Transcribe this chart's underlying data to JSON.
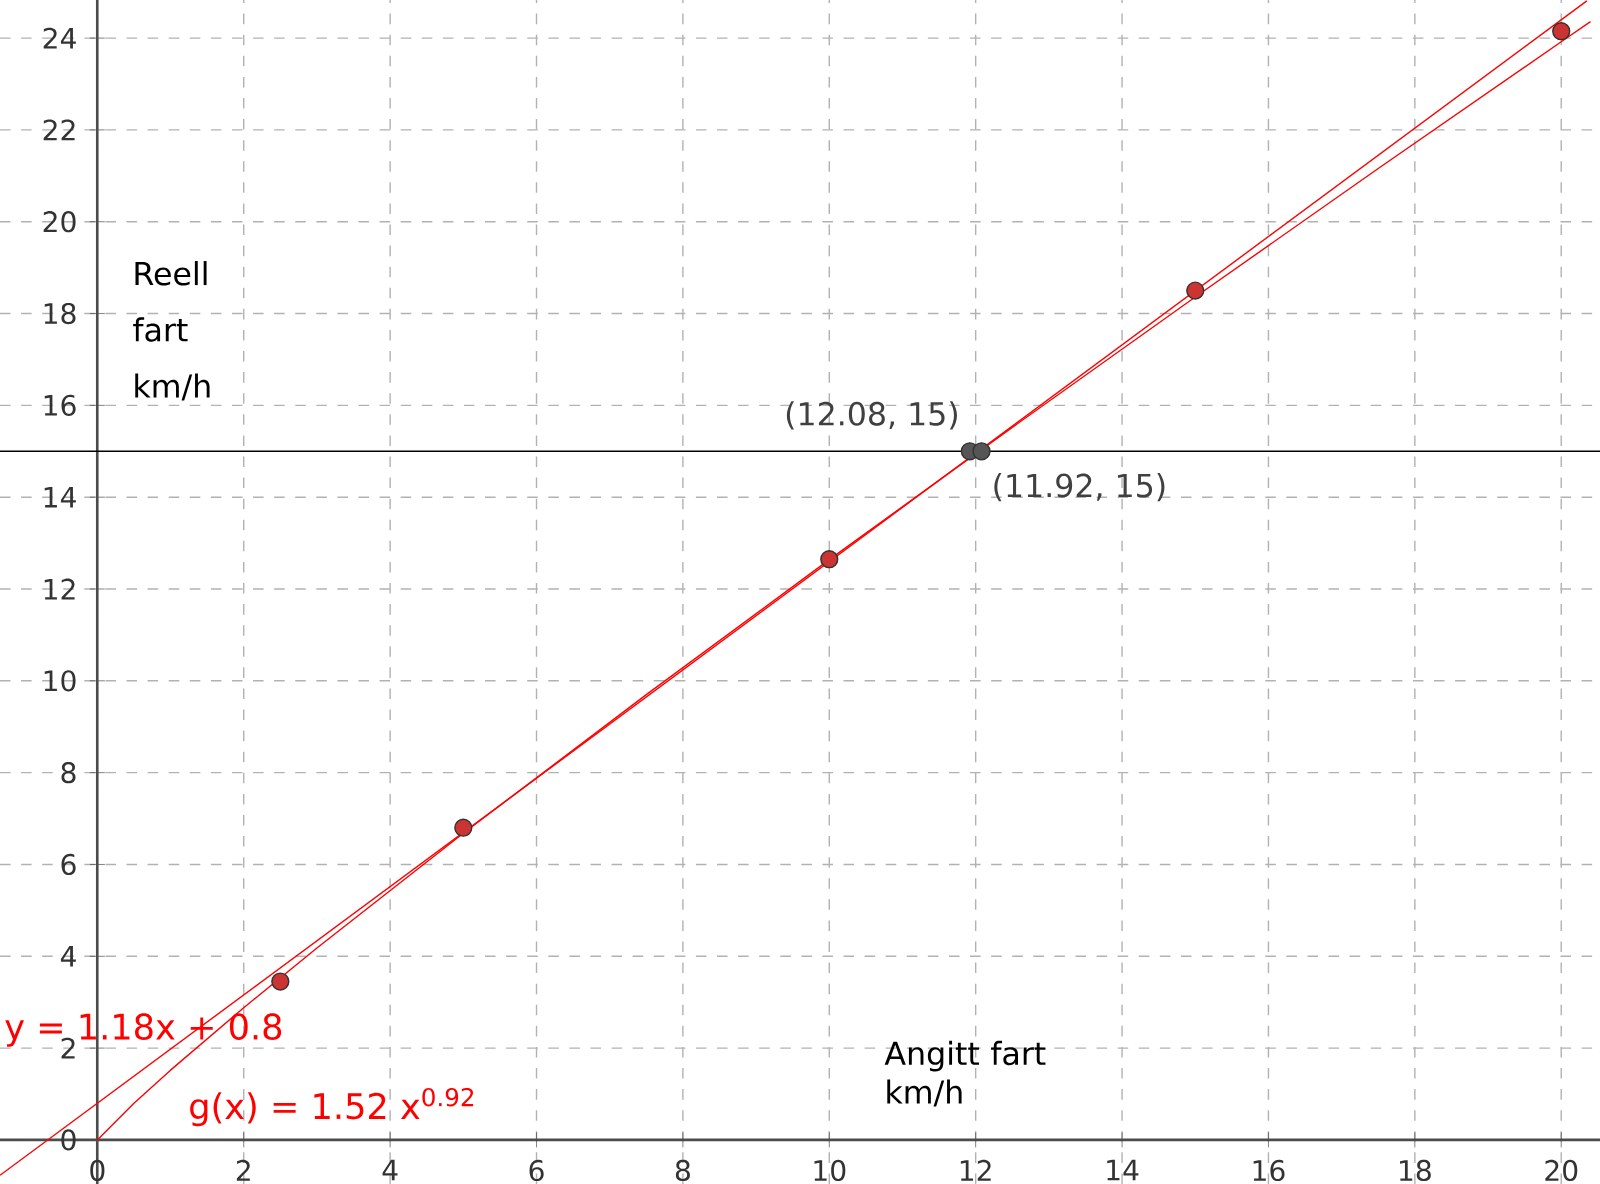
{
  "chart_data": {
    "type": "scatter",
    "xlabel": "Angitt fart km/h",
    "ylabel": "Reell fart km/h",
    "xlim": [
      -1.33,
      20.53
    ],
    "ylim": [
      -0.96,
      24.83
    ],
    "xticks": [
      0,
      2,
      4,
      6,
      8,
      10,
      12,
      14,
      16,
      18,
      20
    ],
    "yticks": [
      0,
      2,
      4,
      6,
      8,
      10,
      12,
      14,
      16,
      18,
      20,
      22,
      24
    ],
    "grid": true,
    "series": [
      {
        "type": "line",
        "name": "y = 1.18x + 0.8",
        "color": "#ff0000",
        "x": [
          -1.33,
          20.35
        ],
        "values": [
          -0.77,
          24.81
        ]
      },
      {
        "type": "line",
        "name": "g(x) = 1.52 x$^{0.92}$",
        "color": "#ff0000",
        "x": [
          0,
          0.5,
          1,
          2,
          3,
          5,
          7.5,
          10,
          12.5,
          15,
          17.5,
          20,
          20.4
        ],
        "values": [
          0,
          0.8,
          1.52,
          2.88,
          4.18,
          6.68,
          9.7,
          12.64,
          15.52,
          18.36,
          21.16,
          23.92,
          24.36
        ]
      },
      {
        "marker": "circle",
        "color": "#cc3333",
        "x": [
          2.5,
          5,
          10,
          15,
          20
        ],
        "values": [
          3.45,
          6.8,
          12.65,
          18.5,
          24.15
        ]
      },
      {
        "marker": "circle",
        "color": "#555555",
        "x": [
          11.92,
          12.08
        ],
        "values": [
          15,
          15
        ]
      }
    ],
    "ref_lines": [
      {
        "axis": "y",
        "value": 15,
        "color": "#000000"
      }
    ],
    "annotations": [
      {
        "text": "(12.08, 15)",
        "x": 12.08,
        "y": 15
      },
      {
        "text": "(11.92, 15)",
        "x": 11.92,
        "y": 15
      }
    ]
  }
}
